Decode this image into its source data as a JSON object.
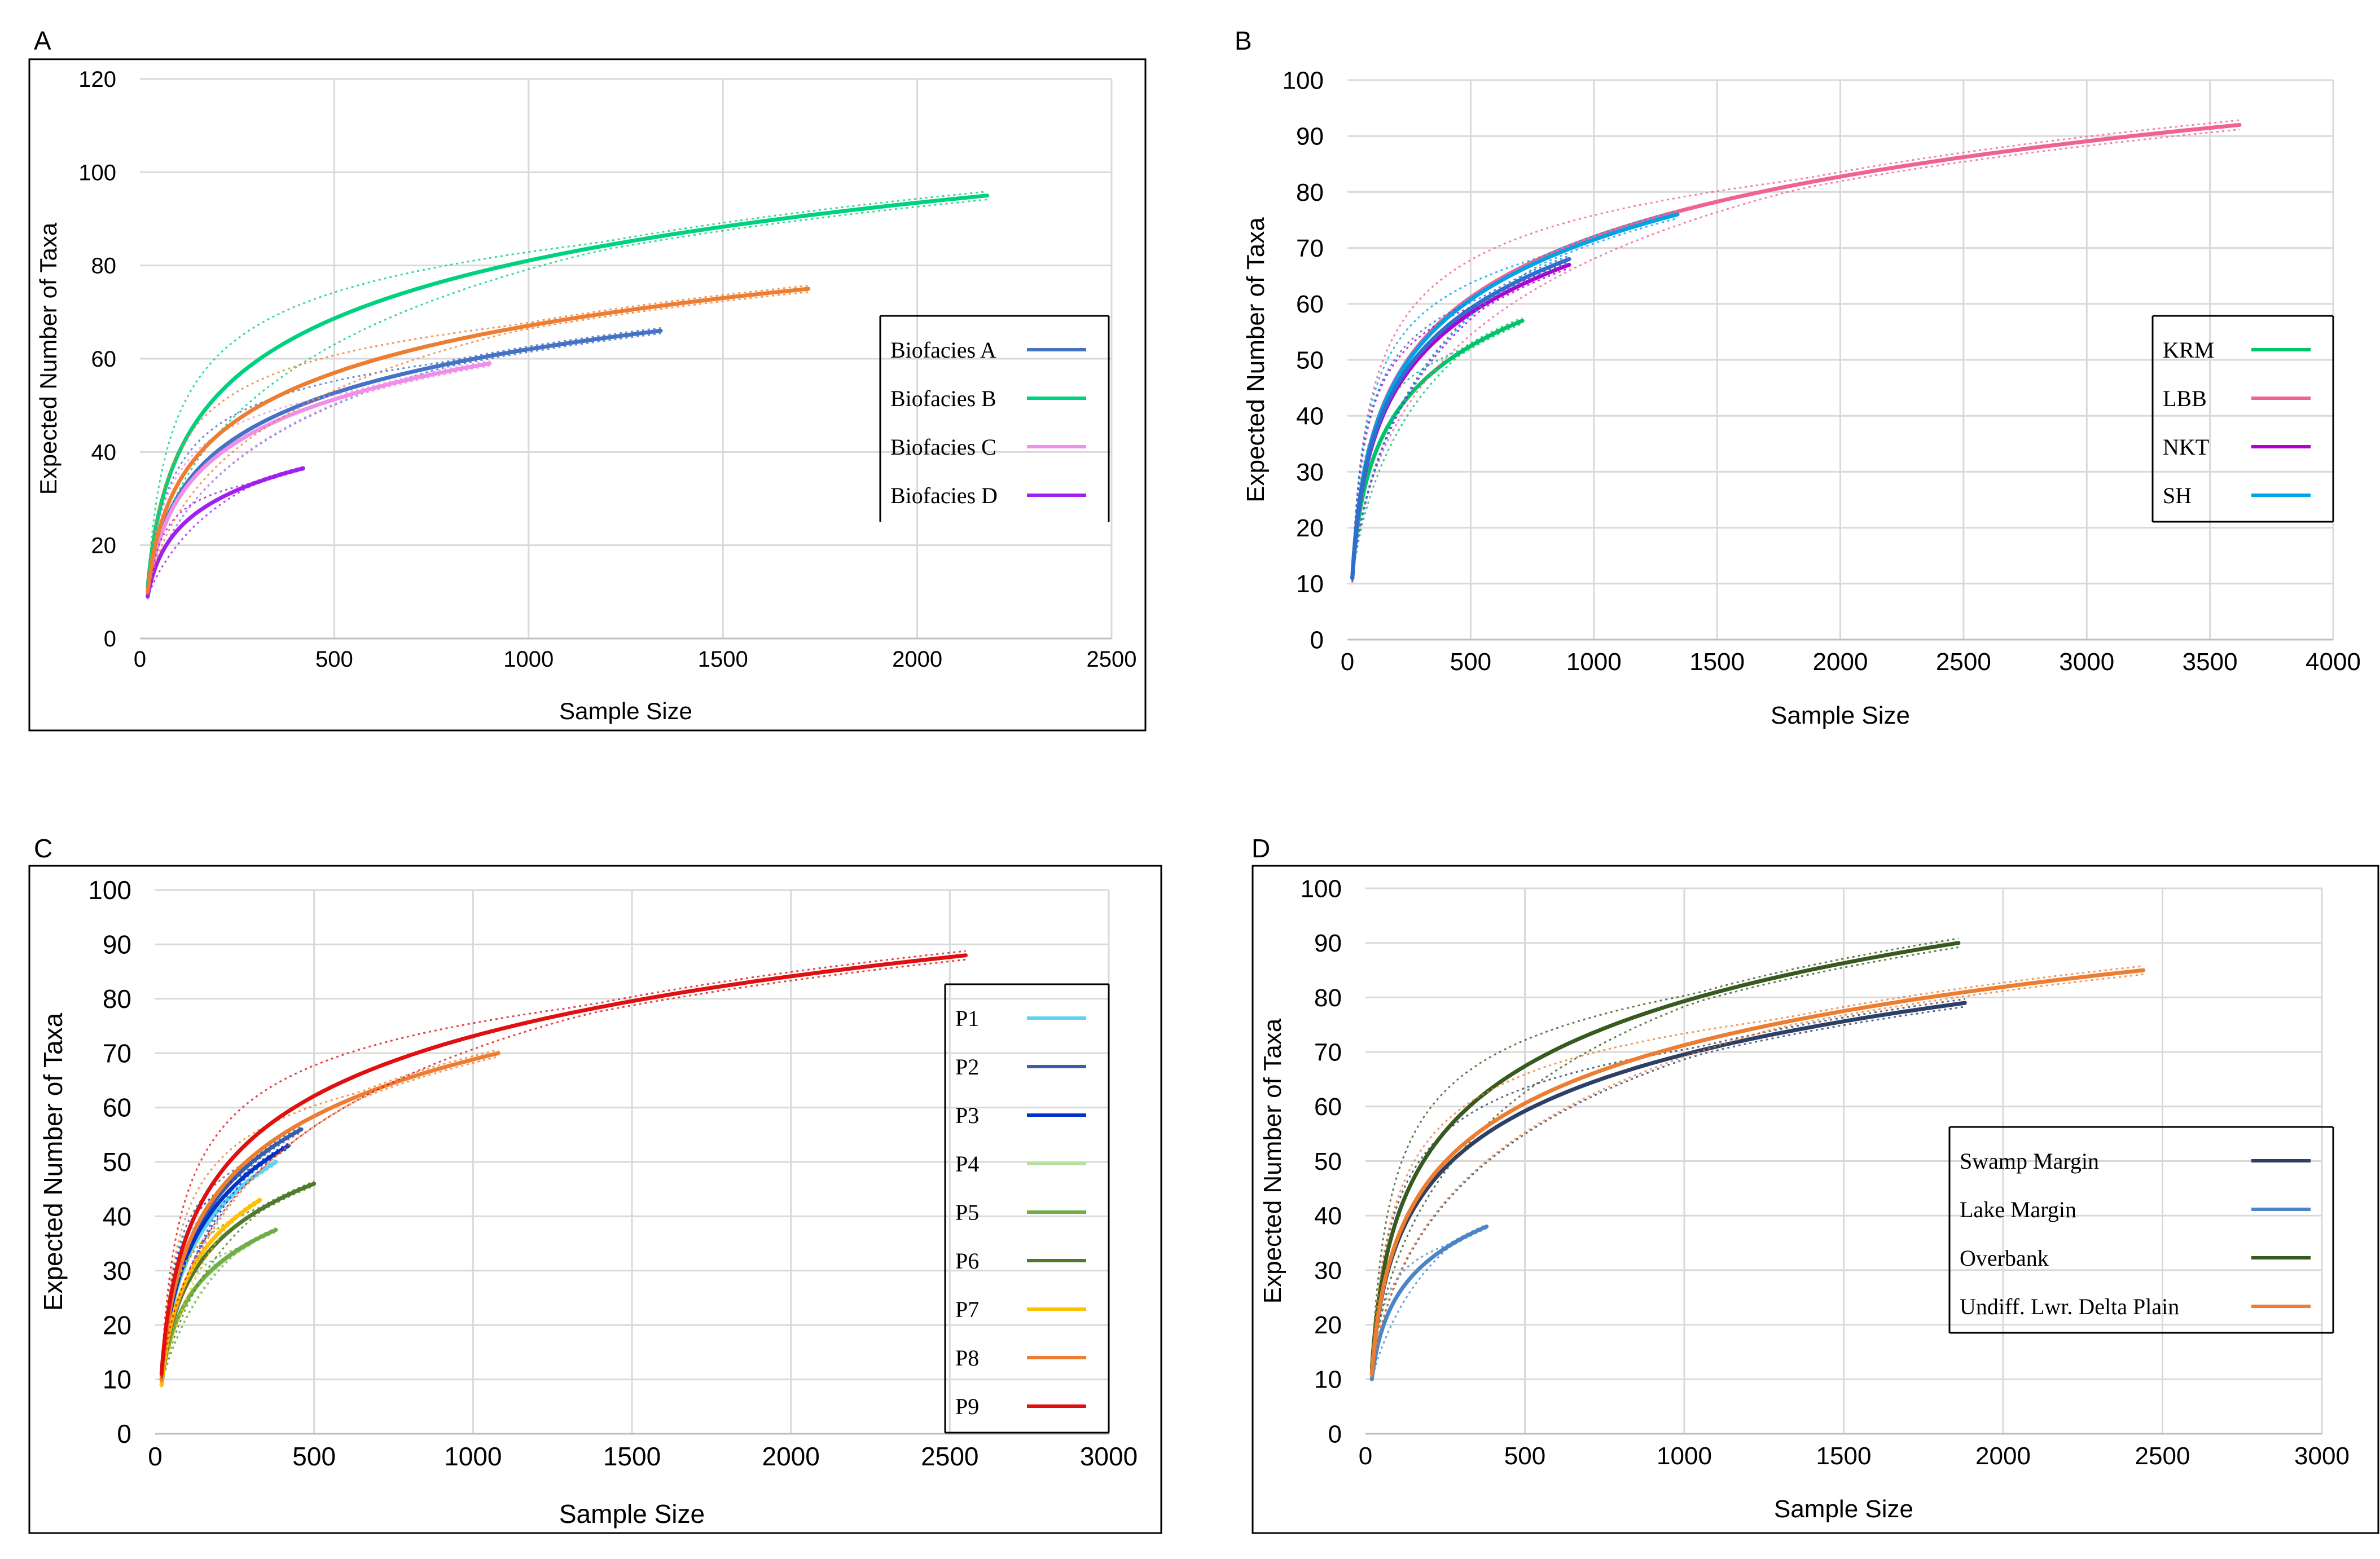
{
  "chart_data": [
    {
      "type": "line",
      "panel": "A",
      "xlabel": "Sample Size",
      "ylabel": "Expected Number of Taxa",
      "xlim": [
        0,
        2500
      ],
      "ylim": [
        0,
        120
      ],
      "xticks": [
        0,
        500,
        1000,
        1500,
        2000,
        2500
      ],
      "yticks": [
        0,
        20,
        40,
        60,
        80,
        100,
        120
      ],
      "legend_position": "right",
      "series": [
        {
          "name": "Biofacies A",
          "color": "#4472c4",
          "x0": 20,
          "y0": 9,
          "x1": 1340,
          "y1": 66
        },
        {
          "name": "Biofacies B",
          "color": "#00d17f",
          "x0": 20,
          "y0": 11,
          "x1": 2180,
          "y1": 95
        },
        {
          "name": "Biofacies C",
          "color": "#f08ee8",
          "x0": 20,
          "y0": 9,
          "x1": 900,
          "y1": 59
        },
        {
          "name": "Biofacies D",
          "color": "#a020f0",
          "x0": 20,
          "y0": 9,
          "x1": 420,
          "y1": 36.5
        },
        {
          "name": "",
          "legend": false,
          "color": "#ed7d31",
          "x0": 20,
          "y0": 10,
          "x1": 1720,
          "y1": 75
        }
      ]
    },
    {
      "type": "line",
      "panel": "B",
      "xlabel": "Sample Size",
      "ylabel": "Expected Number of Taxa",
      "xlim": [
        0,
        4000
      ],
      "ylim": [
        0,
        100
      ],
      "xticks": [
        0,
        500,
        1000,
        1500,
        2000,
        2500,
        3000,
        3500,
        4000
      ],
      "yticks": [
        0,
        10,
        20,
        30,
        40,
        50,
        60,
        70,
        80,
        90,
        100
      ],
      "legend_position": "right",
      "series": [
        {
          "name": "KRM",
          "color": "#00c46a",
          "x0": 20,
          "y0": 11,
          "x1": 710,
          "y1": 57
        },
        {
          "name": "LBB",
          "color": "#f06292",
          "x0": 20,
          "y0": 11,
          "x1": 3620,
          "y1": 92
        },
        {
          "name": "NKT",
          "color": "#b000d0",
          "x0": 20,
          "y0": 11,
          "x1": 900,
          "y1": 67
        },
        {
          "name": "SH",
          "color": "#00a2e8",
          "x0": 20,
          "y0": 11,
          "x1": 1340,
          "y1": 76
        },
        {
          "name": "",
          "legend": false,
          "color": "#2e6fce",
          "x0": 20,
          "y0": 11,
          "x1": 900,
          "y1": 68
        }
      ]
    },
    {
      "type": "line",
      "panel": "C",
      "xlabel": "Sample Size",
      "ylabel": "Expected Number of Taxa",
      "xlim": [
        0,
        3000
      ],
      "ylim": [
        0,
        100
      ],
      "xticks": [
        0,
        500,
        1000,
        1500,
        2000,
        2500,
        3000
      ],
      "yticks": [
        0,
        10,
        20,
        30,
        40,
        50,
        60,
        70,
        80,
        90,
        100
      ],
      "legend_position": "right",
      "series": [
        {
          "name": "P1",
          "color": "#5fd3f3",
          "x0": 20,
          "y0": 10,
          "x1": 380,
          "y1": 50
        },
        {
          "name": "P2",
          "color": "#3a5fa8",
          "x0": 20,
          "y0": 10,
          "x1": 460,
          "y1": 56
        },
        {
          "name": "P3",
          "color": "#0033cc",
          "x0": 20,
          "y0": 10,
          "x1": 420,
          "y1": 53
        },
        {
          "name": "P4",
          "color": "#b7dfa0",
          "x0": 20,
          "y0": 9,
          "x1": 300,
          "y1": 35
        },
        {
          "name": "P5",
          "color": "#70ad47",
          "x0": 20,
          "y0": 9,
          "x1": 380,
          "y1": 37.5
        },
        {
          "name": "P6",
          "color": "#4e7a2a",
          "x0": 20,
          "y0": 9,
          "x1": 500,
          "y1": 46
        },
        {
          "name": "P7",
          "color": "#ffc000",
          "x0": 20,
          "y0": 9,
          "x1": 330,
          "y1": 43
        },
        {
          "name": "P8",
          "color": "#ed7d31",
          "x0": 20,
          "y0": 10,
          "x1": 1080,
          "y1": 70
        },
        {
          "name": "P9",
          "color": "#e01010",
          "x0": 20,
          "y0": 11,
          "x1": 2550,
          "y1": 88
        }
      ]
    },
    {
      "type": "line",
      "panel": "D",
      "xlabel": "Sample Size",
      "ylabel": "Expected Number of Taxa",
      "xlim": [
        0,
        3000
      ],
      "ylim": [
        0,
        100
      ],
      "xticks": [
        0,
        500,
        1000,
        1500,
        2000,
        2500,
        3000
      ],
      "yticks": [
        0,
        10,
        20,
        30,
        40,
        50,
        60,
        70,
        80,
        90,
        100
      ],
      "legend_position": "right",
      "series": [
        {
          "name": "Swamp Margin",
          "color": "#2e3f66",
          "x0": 20,
          "y0": 11,
          "x1": 1880,
          "y1": 79
        },
        {
          "name": "Lake Margin",
          "color": "#4a86c5",
          "x0": 20,
          "y0": 10,
          "x1": 380,
          "y1": 38
        },
        {
          "name": "Overbank",
          "color": "#375a1e",
          "x0": 20,
          "y0": 12,
          "x1": 1860,
          "y1": 90
        },
        {
          "name": "Undiff. Lwr. Delta Plain",
          "color": "#ed7d31",
          "x0": 20,
          "y0": 11,
          "x1": 2440,
          "y1": 85
        }
      ]
    }
  ]
}
